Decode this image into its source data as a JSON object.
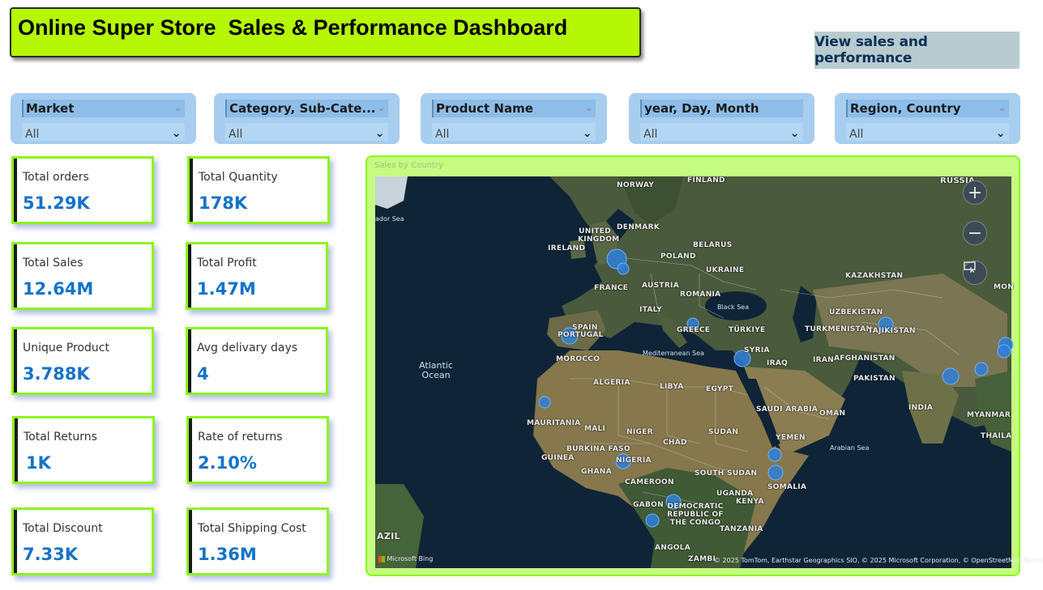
{
  "header": {
    "title": "Online Super Store  Sales & Performance Dashboard",
    "view_button": "View sales and performance"
  },
  "slicers": [
    {
      "label": "Market",
      "value": "All"
    },
    {
      "label": "Category, Sub-Cate...",
      "value": "All"
    },
    {
      "label": "Product Name",
      "value": "All"
    },
    {
      "label": "year, Day, Month",
      "value": "All"
    },
    {
      "label": "Region, Country",
      "value": "All"
    }
  ],
  "kpis": [
    {
      "label": "Total orders",
      "value": "51.29K"
    },
    {
      "label": "Total Quantity",
      "value": "178K"
    },
    {
      "label": "Total Sales",
      "value": "12.64M"
    },
    {
      "label": "Total Profit",
      "value": "1.47M"
    },
    {
      "label": "Unique Product",
      "value": "3.788K"
    },
    {
      "label": "Avg delivary days",
      "value": "4"
    },
    {
      "label": "Total Returns",
      "value": "1K"
    },
    {
      "label": "Rate of returns",
      "value": "2.10%"
    },
    {
      "label": "Total Discount",
      "value": "7.33K"
    },
    {
      "label": "Total Shipping Cost",
      "value": "1.36M"
    }
  ],
  "map": {
    "title": "Sales by Country",
    "zoom_in": "+",
    "zoom_out": "−",
    "countries": {
      "finland": "FINLAND",
      "russia": "RUSSIA",
      "norway": "NORWAY",
      "united_kingdom": "UNITED KINGDOM",
      "denmark": "DENMARK",
      "ireland": "IRELAND",
      "belarus": "BELARUS",
      "poland": "POLAND",
      "ukraine": "UKRAINE",
      "france": "FRANCE",
      "austria": "AUSTRIA",
      "romania": "ROMANIA",
      "italy": "ITALY",
      "spain": "SPAIN",
      "portugal": "PORTUGAL",
      "greece": "GREECE",
      "turkiye": "TÜRKIYE",
      "kazakhstan": "KAZAKHSTAN",
      "uzbekistan": "UZBEKISTAN",
      "turkmenistan": "TURKMENISTAN",
      "tajikistan": "TAJIKISTAN",
      "mongolia": "MON",
      "syria": "SYRIA",
      "iraq": "IRAQ",
      "iran": "IRAN",
      "afghanistan": "AFGHANISTAN",
      "pakistan": "PAKISTAN",
      "morocco": "MOROCCO",
      "algeria": "ALGERIA",
      "libya": "LIBYA",
      "egypt": "EGYPT",
      "saudi_arabia": "SAUDI ARABIA",
      "oman": "OMAN",
      "india": "INDIA",
      "myanmar": "MYANMAR",
      "thailand": "THAILA",
      "mauritania": "MAURITANIA",
      "mali": "MALI",
      "niger": "NIGER",
      "chad": "CHAD",
      "sudan": "SUDAN",
      "yemen": "YEMEN",
      "burkina_faso": "BURKINA FASO",
      "guinea": "GUINEA",
      "nigeria": "NIGERIA",
      "ghana": "GHANA",
      "south_sudan": "SOUTH SUDAN",
      "somalia": "SOMALIA",
      "cameroon": "CAMEROON",
      "uganda": "UGANDA",
      "gabon": "GABON",
      "drc": "DEMOCRATIC REPUBLIC OF THE CONGO",
      "kenya": "KENYA",
      "tanzania": "TANZANIA",
      "angola": "ANGOLA",
      "zambia": "ZAMBI",
      "brazil": "AZIL"
    },
    "water": {
      "atlantic": "Atlantic Ocean",
      "labrador": "ador Sea",
      "black_sea": "Black Sea",
      "med_sea": "Mediterranean Sea",
      "arabian_sea": "Arabian Sea"
    },
    "logo": "Microsoft Bing",
    "attribution": "© 2025 TomTom, Earthstar Geographics SIO, © 2025 Microsoft Corporation, © OpenStreetMap  Terms",
    "colors": {
      "bubble": "#2f7fd8",
      "frame": "#8cf51e",
      "card": "#c6fb82",
      "title_bg": "#b5f705",
      "kpi_value": "#1473c9"
    }
  }
}
